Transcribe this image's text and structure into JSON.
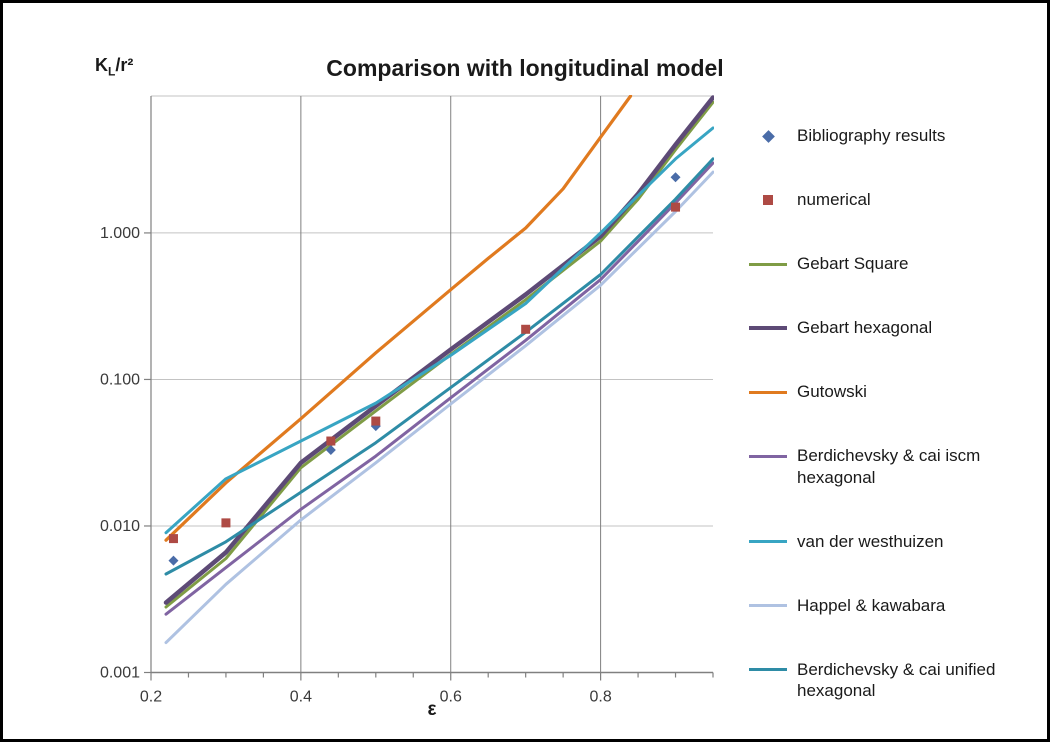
{
  "chart": {
    "background": "#ffffff",
    "frame_border_color": "#000000",
    "text_color": "#1a1a1a",
    "tick_text_color": "#3a3a3a"
  },
  "chart_data": {
    "type": "line",
    "title": "Comparison with longitudinal model",
    "legend_position": "right",
    "grid": {
      "major_color": "#808080",
      "minor_color": "#c3c3c3",
      "axis_color": "#808080"
    },
    "x_axis": {
      "label": "ε",
      "scale": "linear",
      "min": 0.2,
      "max": 0.95,
      "ticks": [
        0.2,
        0.4,
        0.6,
        0.8
      ],
      "tick_labels": [
        "0.2",
        "0.4",
        "0.6",
        "0.8"
      ],
      "gridlines": [
        0.4,
        0.6,
        0.8
      ],
      "minor_tick_step": 0.05
    },
    "y_axis": {
      "label": "K_L/r²",
      "label_parts": {
        "base": "K",
        "sub": "L",
        "rest": "/r²"
      },
      "scale": "log",
      "min": 0.001,
      "max": 8.6,
      "ticks": [
        1.0,
        0.1,
        0.01,
        0.001
      ],
      "tick_labels": [
        "1.000",
        "0.100",
        "0.010",
        "0.001"
      ]
    },
    "series": [
      {
        "name": "Bibliography results",
        "type": "scatter",
        "marker": "diamond",
        "color": "#4A6CA8",
        "x": [
          0.23,
          0.44,
          0.5,
          0.9
        ],
        "y": [
          0.0058,
          0.033,
          0.048,
          2.4
        ]
      },
      {
        "name": "numerical",
        "type": "scatter",
        "marker": "square",
        "color": "#AE4A44",
        "x": [
          0.23,
          0.3,
          0.44,
          0.5,
          0.7,
          0.9
        ],
        "y": [
          0.0082,
          0.0105,
          0.038,
          0.052,
          0.22,
          1.5
        ]
      },
      {
        "name": "Gebart Square",
        "type": "line",
        "color": "#7F9C45",
        "width": 3,
        "x": [
          0.22,
          0.3,
          0.4,
          0.5,
          0.6,
          0.7,
          0.8,
          0.85,
          0.9,
          0.95
        ],
        "y": [
          0.0028,
          0.006,
          0.025,
          0.061,
          0.148,
          0.35,
          0.88,
          1.7,
          3.7,
          7.8
        ]
      },
      {
        "name": "Gebart hexagonal",
        "type": "line",
        "color": "#5D4A76",
        "width": 4.5,
        "x": [
          0.22,
          0.3,
          0.4,
          0.5,
          0.6,
          0.7,
          0.8,
          0.85,
          0.9,
          0.95
        ],
        "y": [
          0.003,
          0.0066,
          0.027,
          0.066,
          0.16,
          0.38,
          0.95,
          1.85,
          4.0,
          8.4
        ]
      },
      {
        "name": "Gutowski",
        "type": "line",
        "color": "#E07A1F",
        "width": 3.2,
        "x": [
          0.22,
          0.3,
          0.4,
          0.5,
          0.6,
          0.65,
          0.7,
          0.75,
          0.8,
          0.84
        ],
        "y": [
          0.008,
          0.0197,
          0.054,
          0.152,
          0.41,
          0.67,
          1.08,
          2.0,
          4.5,
          8.6
        ]
      },
      {
        "name": "Berdichevsky & cai iscm hexagonal",
        "type": "line",
        "color": "#8064A2",
        "width": 3,
        "x": [
          0.22,
          0.3,
          0.4,
          0.5,
          0.6,
          0.7,
          0.8,
          0.9,
          0.95
        ],
        "y": [
          0.0025,
          0.0052,
          0.013,
          0.03,
          0.075,
          0.185,
          0.48,
          1.6,
          3.0
        ]
      },
      {
        "name": "van der westhuizen",
        "type": "line",
        "color": "#38A5C3",
        "width": 3,
        "x": [
          0.22,
          0.3,
          0.4,
          0.5,
          0.6,
          0.7,
          0.8,
          0.85,
          0.9,
          0.95
        ],
        "y": [
          0.009,
          0.021,
          0.038,
          0.069,
          0.146,
          0.33,
          1.0,
          1.8,
          3.2,
          5.2
        ]
      },
      {
        "name": "Happel & kawabara",
        "type": "line",
        "color": "#AFC2E2",
        "width": 3,
        "x": [
          0.22,
          0.3,
          0.4,
          0.5,
          0.6,
          0.7,
          0.8,
          0.9,
          0.95
        ],
        "y": [
          0.0016,
          0.004,
          0.011,
          0.027,
          0.068,
          0.17,
          0.44,
          1.4,
          2.6
        ]
      },
      {
        "name": "Berdichevsky & cai unified hexagonal",
        "type": "line",
        "color": "#2E8CA6",
        "width": 3,
        "x": [
          0.22,
          0.3,
          0.4,
          0.5,
          0.6,
          0.7,
          0.8,
          0.9,
          0.95
        ],
        "y": [
          0.0047,
          0.0078,
          0.017,
          0.037,
          0.088,
          0.21,
          0.52,
          1.7,
          3.2
        ]
      }
    ]
  }
}
